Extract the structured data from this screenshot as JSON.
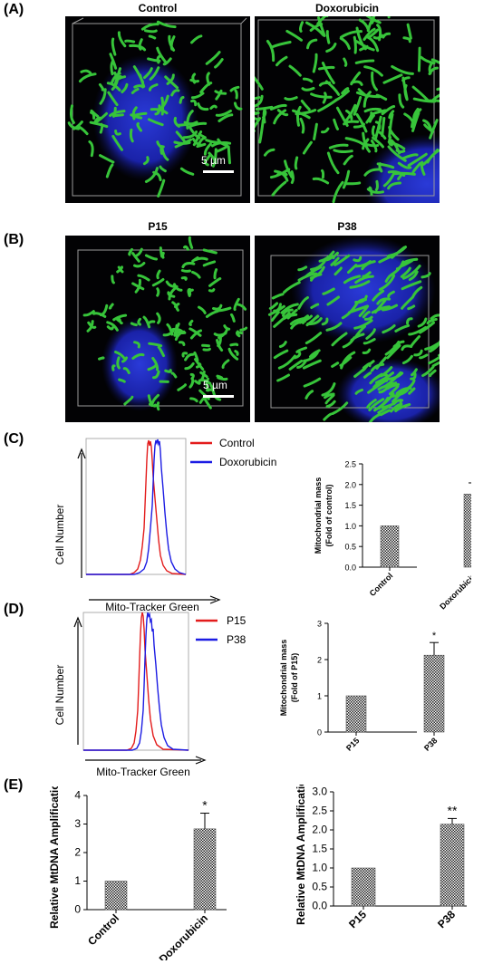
{
  "panels": {
    "A": {
      "letter": "(A)",
      "images": [
        {
          "title": "Control",
          "scale_label": "5 µm"
        },
        {
          "title": "Doxorubicin",
          "scale_label": ""
        }
      ]
    },
    "B": {
      "letter": "(B)",
      "images": [
        {
          "title": "P15",
          "scale_label": "5 µm"
        },
        {
          "title": "P38",
          "scale_label": ""
        }
      ]
    },
    "C": {
      "letter": "(C)",
      "histogram": {
        "ylabel": "Cell Number",
        "xlabel": "Mito-Tracker Green",
        "legend": [
          {
            "name": "Control",
            "color": "#e31c1c"
          },
          {
            "name": "Doxorubicin",
            "color": "#1c1ce3"
          }
        ]
      }
    },
    "D": {
      "letter": "(D)",
      "histogram": {
        "ylabel": "Cell Number",
        "xlabel": "Mito-Tracker Green",
        "legend": [
          {
            "name": "P15",
            "color": "#e31c1c"
          },
          {
            "name": "P38",
            "color": "#1c1ce3"
          }
        ]
      }
    },
    "E": {
      "letter": "(E)"
    }
  },
  "chart_data": [
    {
      "id": "C",
      "type": "bar",
      "categories": [
        "Control",
        "Doxorubicin"
      ],
      "values": [
        1.0,
        1.77
      ],
      "errors": [
        0,
        0.27
      ],
      "significance": [
        "",
        "*"
      ],
      "ylabel_lines": [
        "Mitochondrial mass",
        "(Fold of control)"
      ],
      "ylim": [
        0,
        2.5
      ],
      "yticks": [
        "0.0",
        "0.5",
        "1.0",
        "1.5",
        "2.0",
        "2.5"
      ]
    },
    {
      "id": "D",
      "type": "bar",
      "categories": [
        "P15",
        "P38"
      ],
      "values": [
        1.0,
        2.12
      ],
      "errors": [
        0,
        0.35
      ],
      "significance": [
        "",
        "*"
      ],
      "ylabel_lines": [
        "Mitochondrial mass",
        "(Fold of P15)"
      ],
      "ylim": [
        0,
        3
      ],
      "yticks": [
        "0",
        "1",
        "2",
        "3"
      ]
    },
    {
      "id": "E1",
      "type": "bar",
      "categories": [
        "Control",
        "Doxorubicin"
      ],
      "values": [
        1.0,
        2.83
      ],
      "errors": [
        0,
        0.55
      ],
      "significance": [
        "",
        "*"
      ],
      "ylabel_lines": [
        "Relative MtDNA Amplification"
      ],
      "ylim": [
        0,
        4
      ],
      "yticks": [
        "0",
        "1",
        "2",
        "3",
        "4"
      ]
    },
    {
      "id": "E2",
      "type": "bar",
      "categories": [
        "P15",
        "P38"
      ],
      "values": [
        1.0,
        2.15
      ],
      "errors": [
        0,
        0.15
      ],
      "significance": [
        "",
        "**"
      ],
      "ylabel_lines": [
        "Relative MtDNA Amplification"
      ],
      "ylim": [
        0,
        3
      ],
      "yticks": [
        "0.0",
        "0.5",
        "1.0",
        "1.5",
        "2.0",
        "2.5",
        "3.0"
      ]
    }
  ]
}
